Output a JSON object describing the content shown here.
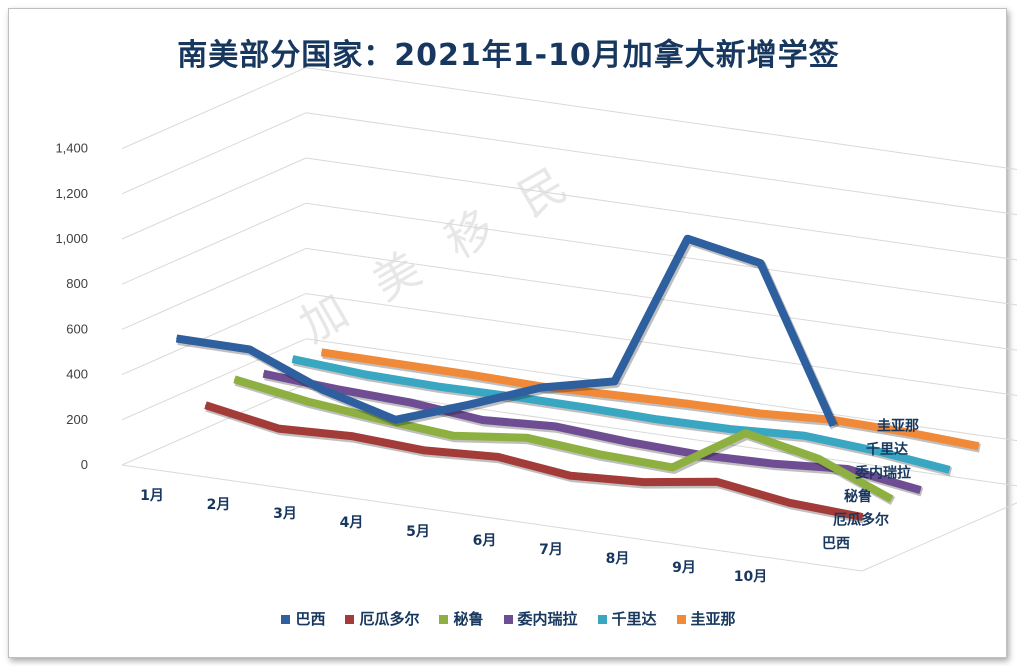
{
  "chart_data": {
    "type": "line",
    "title": "南美部分国家：2021年1-10月加拿大新增学签",
    "categories": [
      "1月",
      "2月",
      "3月",
      "4月",
      "5月",
      "6月",
      "7月",
      "8月",
      "9月",
      "10月"
    ],
    "ylim": [
      0,
      1400
    ],
    "yticks": [
      "0",
      "200",
      "400",
      "600",
      "800",
      "1,000",
      "1,200",
      "1,400"
    ],
    "series": [
      {
        "name": "巴西",
        "color": "#2e5f9e",
        "values": [
          530,
          525,
          390,
          300,
          410,
          530,
          600,
          1275,
          1210,
          535
        ]
      },
      {
        "name": "厄瓜多尔",
        "color": "#a33b38",
        "values": [
          175,
          115,
          125,
          105,
          120,
          80,
          95,
          140,
          90,
          70
        ]
      },
      {
        "name": "秘鲁",
        "color": "#8db041",
        "values": [
          230,
          175,
          140,
          110,
          145,
          115,
          100,
          295,
          225,
          90
        ]
      },
      {
        "name": "委内瑞拉",
        "color": "#6f4d93",
        "values": [
          195,
          170,
          155,
          120,
          135,
          110,
          95,
          100,
          120,
          70
        ]
      },
      {
        "name": "千里达",
        "color": "#39a7c2",
        "values": [
          200,
          175,
          165,
          165,
          160,
          150,
          150,
          165,
          140,
          100
        ]
      },
      {
        "name": "圭亚那",
        "color": "#f08a38",
        "values": [
          170,
          165,
          160,
          150,
          155,
          160,
          160,
          175,
          165,
          145
        ]
      }
    ]
  },
  "watermark": "加美移民"
}
